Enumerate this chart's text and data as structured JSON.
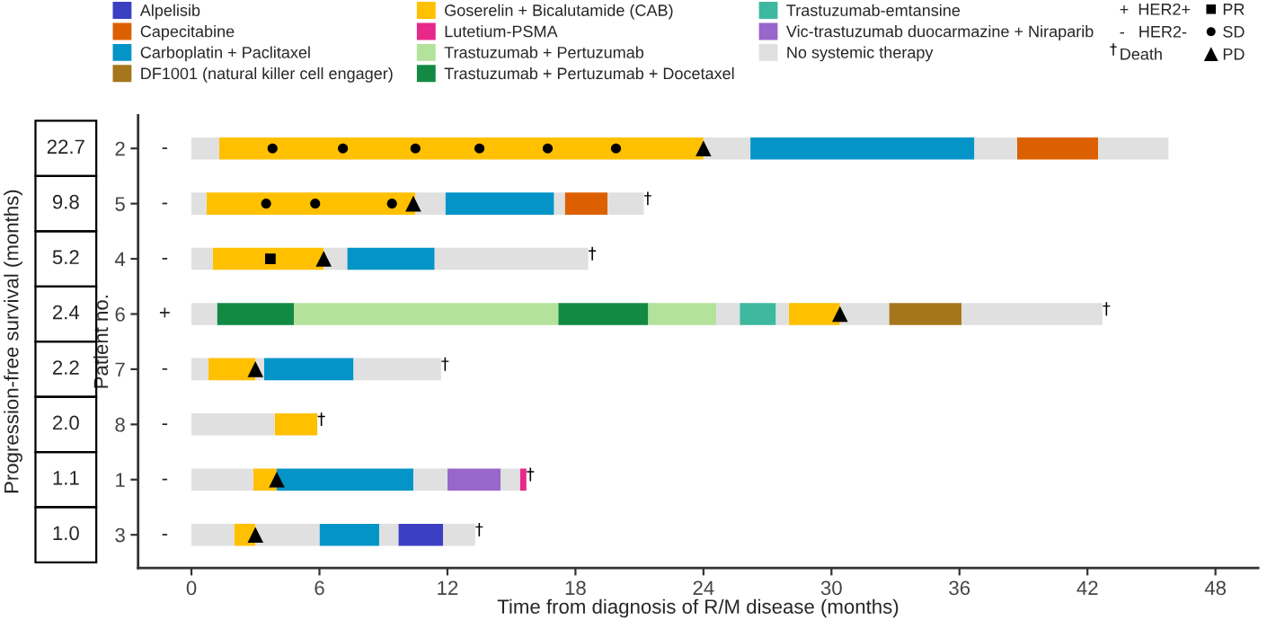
{
  "chart_data": {
    "type": "bar",
    "orientation": "horizontal",
    "xlabel": "Time from diagnosis of R/M disease (months)",
    "ylabel": "Patient no.",
    "y2label": "Progression-free survival (months)",
    "categories": [
      "2",
      "5",
      "4",
      "6",
      "7",
      "8",
      "1",
      "3"
    ],
    "xlim": [
      -2.5,
      50
    ],
    "xticks": [
      0,
      6,
      12,
      18,
      24,
      30,
      36,
      42,
      48
    ],
    "legend": "top",
    "grid": false,
    "series": [
      {
        "name": "Alpelisib",
        "color": "#3b3fc1",
        "base": [
          null,
          null,
          null,
          null,
          null,
          null,
          null,
          9.7
        ],
        "values": [
          null,
          null,
          null,
          null,
          null,
          null,
          null,
          2.1
        ]
      },
      {
        "name": "Capecitabine",
        "color": "#dd6000",
        "base": [
          38.7,
          17.5,
          null,
          null,
          null,
          null,
          null,
          null
        ],
        "values": [
          3.8,
          2.0,
          null,
          null,
          null,
          null,
          null,
          null
        ]
      },
      {
        "name": "Carboplatin + Paclitaxel",
        "color": "#0494c8",
        "base": [
          26.2,
          11.9,
          7.3,
          null,
          3.4,
          null,
          4.0,
          6.0
        ],
        "values": [
          10.5,
          5.1,
          4.1,
          null,
          4.2,
          null,
          6.4,
          2.8
        ]
      },
      {
        "name": "DF1001 (natural killer cell engager)",
        "color": "#a6761d",
        "base": [
          null,
          null,
          null,
          32.7,
          null,
          null,
          null,
          null
        ],
        "values": [
          null,
          null,
          null,
          3.4,
          null,
          null,
          null,
          null
        ]
      },
      {
        "name": "Goserelin + Bicalutamide (CAB)",
        "color": "#ffc000",
        "base": [
          1.3,
          0.7,
          1.0,
          28.0,
          0.8,
          3.9,
          2.9,
          2.0
        ],
        "values": [
          22.7,
          9.8,
          5.2,
          2.4,
          2.2,
          2.0,
          1.1,
          1.0
        ]
      },
      {
        "name": "Lutetium-PSMA",
        "color": "#e7298a",
        "base": [
          null,
          null,
          null,
          null,
          null,
          null,
          15.4,
          null
        ],
        "values": [
          null,
          null,
          null,
          null,
          null,
          null,
          0.3,
          null
        ]
      },
      {
        "name": "Trastuzumab + Pertuzumab",
        "color": "#b2e29c",
        "base": [
          null,
          null,
          null,
          4.8,
          null,
          null,
          null,
          null
        ],
        "values": [
          null,
          null,
          null,
          12.4,
          null,
          null,
          null,
          null
        ]
      },
      {
        "name": "Trastuzumab + Pertuzumab + Docetaxel",
        "color": "#128a44",
        "base": [
          null,
          null,
          null,
          1.2,
          null,
          null,
          null,
          null
        ],
        "values": [
          null,
          null,
          null,
          3.6,
          null,
          null,
          null,
          null
        ]
      },
      {
        "name": "Trastuzumab-emtansine",
        "color": "#3fb8a0",
        "base": [
          null,
          null,
          null,
          25.7,
          null,
          null,
          null,
          null
        ],
        "values": [
          null,
          null,
          null,
          1.7,
          null,
          null,
          null,
          null
        ]
      },
      {
        "name": "Vic-trastuzumab duocarmazine + Niraparib",
        "color": "#9966cc",
        "base": [
          null,
          null,
          null,
          null,
          null,
          null,
          12.0,
          null
        ],
        "values": [
          null,
          null,
          null,
          null,
          null,
          null,
          2.5,
          null
        ]
      },
      {
        "name": "No systemic therapy",
        "color": "#e0e0e0",
        "base": [
          0,
          0,
          0,
          0,
          0,
          0,
          0,
          0
        ],
        "values": [
          1.3,
          0.7,
          1.0,
          1.2,
          0.8,
          3.9,
          2.9,
          2.0
        ]
      },
      {
        "color": "#b2e29c",
        "base": [
          null,
          null,
          null,
          21.4,
          null,
          null,
          null,
          null
        ],
        "values": [
          null,
          null,
          null,
          3.2,
          null,
          null,
          null,
          null
        ]
      },
      {
        "color": "#128a44",
        "base": [
          null,
          null,
          null,
          17.2,
          null,
          null,
          null,
          null
        ],
        "values": [
          null,
          null,
          null,
          4.2,
          null,
          null,
          null,
          null
        ]
      },
      {
        "color": "#e0e0e0",
        "base": [
          24.0,
          10.5,
          6.2,
          24.6,
          3.0,
          null,
          10.4,
          3.0
        ],
        "values": [
          2.2,
          1.4,
          1.1,
          1.1,
          0.4,
          null,
          1.6,
          3.0
        ]
      },
      {
        "color": "#e0e0e0",
        "base": [
          36.7,
          17.0,
          11.4,
          27.4,
          7.6,
          null,
          14.5,
          8.8
        ],
        "values": [
          2.0,
          0.5,
          7.2,
          0.6,
          4.1,
          null,
          0.9,
          0.9
        ]
      },
      {
        "color": "#e0e0e0",
        "base": [
          42.5,
          19.5,
          null,
          30.4,
          null,
          null,
          null,
          11.8
        ],
        "values": [
          3.3,
          1.7,
          null,
          2.3,
          null,
          null,
          null,
          1.5
        ]
      },
      {
        "color": "#e0e0e0",
        "base": [
          null,
          null,
          null,
          36.1,
          null,
          null,
          null,
          null
        ],
        "values": [
          null,
          null,
          null,
          6.6,
          null,
          null,
          null,
          null
        ]
      },
      {
        "name": "PR",
        "type": "scatter",
        "marker": "square",
        "color": "#000000",
        "values": [
          null,
          null,
          3.7,
          null,
          null,
          null,
          null,
          null
        ]
      },
      {
        "name": "SD",
        "type": "scatter",
        "marker": "circle",
        "color": "#000000",
        "values": [
          3.8,
          3.5,
          null,
          null,
          null,
          null,
          null,
          null
        ]
      },
      {
        "type": "scatter",
        "marker": "circle",
        "color": "#000000",
        "values": [
          7.1,
          5.8,
          null,
          null,
          null,
          null,
          null,
          null
        ]
      },
      {
        "type": "scatter",
        "marker": "circle",
        "color": "#000000",
        "values": [
          10.5,
          9.4,
          null,
          null,
          null,
          null,
          null,
          null
        ]
      },
      {
        "type": "scatter",
        "marker": "circle",
        "color": "#000000",
        "values": [
          13.5,
          null,
          null,
          null,
          null,
          null,
          null,
          null
        ]
      },
      {
        "type": "scatter",
        "marker": "circle",
        "color": "#000000",
        "values": [
          16.7,
          null,
          null,
          null,
          null,
          null,
          null,
          null
        ]
      },
      {
        "type": "scatter",
        "marker": "circle",
        "color": "#000000",
        "values": [
          19.9,
          null,
          null,
          null,
          null,
          null,
          null,
          null
        ]
      },
      {
        "name": "PD",
        "type": "scatter",
        "marker": "triangle",
        "color": "#000000",
        "values": [
          24.0,
          10.4,
          6.2,
          30.4,
          3.0,
          null,
          4.0,
          3.0
        ]
      },
      {
        "name": "Death",
        "type": "scatter",
        "marker": "cross",
        "color": "#000000",
        "values": [
          null,
          21.2,
          18.6,
          42.7,
          11.7,
          5.9,
          15.7,
          13.3
        ]
      }
    ],
    "annotations": [
      "-",
      "-",
      "-",
      "+",
      "-",
      "-",
      "-",
      "-",
      "22.7",
      "9.8",
      "5.2",
      "2.4",
      "2.2",
      "2.0",
      "1.1",
      "1.0",
      "+  HER2+",
      "-   HER2-"
    ]
  }
}
